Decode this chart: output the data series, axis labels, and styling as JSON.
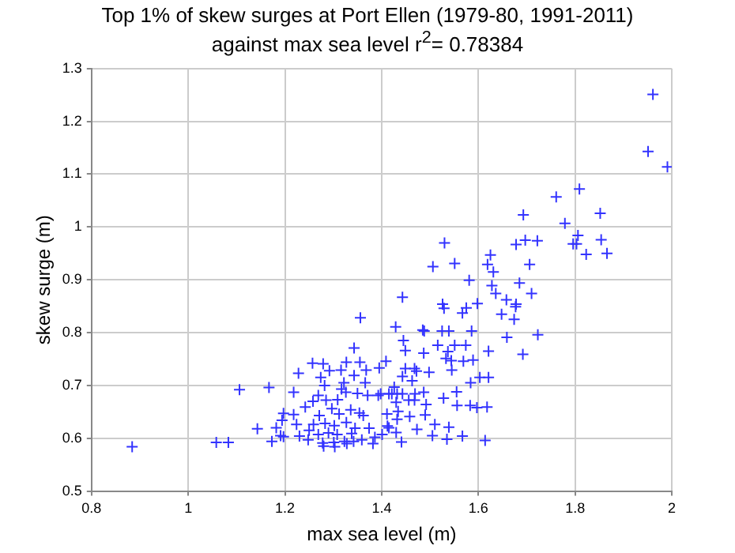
{
  "chart_data": {
    "type": "scatter",
    "title": "Top 1% of skew surges at Port Ellen (1979-80, 1991-2011)",
    "subtitle": "against max sea level r$^{2}$= 0.78384",
    "xlabel": "max sea level (m)",
    "ylabel": "skew surge (m)",
    "x": [
      1.961,
      1.951,
      1.991,
      1.809,
      1.761,
      1.693,
      1.852,
      1.779,
      1.806,
      1.53,
      1.697,
      1.722,
      1.678,
      1.796,
      1.803,
      1.854,
      1.823,
      1.866,
      1.625,
      1.506,
      1.551,
      1.619,
      1.706,
      1.631,
      1.581,
      1.628,
      1.685,
      1.71,
      1.636,
      1.658,
      1.678,
      1.677,
      1.443,
      1.526,
      1.529,
      1.575,
      1.567,
      1.598,
      1.648,
      1.674,
      1.429,
      1.485,
      1.488,
      1.525,
      1.539,
      1.586,
      1.659,
      1.723,
      1.445,
      1.449,
      1.516,
      1.551,
      1.574,
      1.537,
      1.487,
      1.621,
      1.692,
      1.409,
      1.533,
      1.544,
      1.569,
      1.589,
      1.449,
      1.468,
      1.472,
      1.498,
      1.545,
      1.443,
      1.463,
      1.603,
      1.621,
      1.584,
      1.426,
      1.398,
      1.415,
      1.421,
      1.432,
      1.443,
      1.469,
      1.487,
      1.528,
      1.555,
      1.43,
      1.492,
      1.468,
      1.556,
      1.583,
      1.597,
      1.618,
      1.411,
      1.434,
      1.456,
      1.49,
      1.432,
      1.458,
      1.412,
      1.415,
      1.51,
      1.539,
      1.43,
      1.473,
      1.505,
      1.535,
      1.567,
      1.441,
      1.614,
      1.401,
      1.356,
      1.343,
      1.257,
      1.279,
      1.327,
      1.355,
      1.395,
      1.228,
      1.274,
      1.292,
      1.316,
      1.343,
      1.368,
      1.282,
      1.322,
      1.366,
      1.106,
      1.167,
      1.218,
      1.269,
      1.317,
      1.326,
      1.35,
      1.371,
      1.393,
      1.258,
      1.285,
      1.309,
      1.242,
      1.297,
      1.336,
      1.354,
      1.197,
      1.218,
      1.271,
      1.312,
      1.362,
      1.194,
      1.224,
      1.259,
      1.283,
      1.302,
      1.327,
      1.345,
      1.374,
      1.143,
      1.182,
      1.191,
      1.197,
      1.23,
      1.25,
      1.269,
      1.29,
      1.308,
      1.338,
      1.386,
      1.173,
      1.248,
      1.278,
      1.301,
      1.323,
      1.328,
      1.342,
      1.359,
      1.382,
      1.28,
      1.303,
      1.058,
      1.083,
      0.884
    ],
    "values": [
      1.251,
      1.143,
      1.114,
      1.072,
      1.057,
      1.023,
      1.026,
      1.007,
      0.984,
      0.97,
      0.975,
      0.974,
      0.967,
      0.968,
      0.968,
      0.976,
      0.948,
      0.95,
      0.947,
      0.925,
      0.931,
      0.929,
      0.929,
      0.915,
      0.899,
      0.889,
      0.894,
      0.874,
      0.874,
      0.862,
      0.854,
      0.849,
      0.867,
      0.854,
      0.846,
      0.847,
      0.837,
      0.855,
      0.835,
      0.825,
      0.811,
      0.805,
      0.803,
      0.803,
      0.803,
      0.803,
      0.791,
      0.796,
      0.785,
      0.766,
      0.776,
      0.776,
      0.776,
      0.764,
      0.761,
      0.765,
      0.759,
      0.746,
      0.751,
      0.747,
      0.746,
      0.748,
      0.732,
      0.732,
      0.727,
      0.725,
      0.729,
      0.717,
      0.709,
      0.715,
      0.715,
      0.705,
      0.697,
      0.684,
      0.684,
      0.684,
      0.684,
      0.684,
      0.684,
      0.687,
      0.676,
      0.688,
      0.668,
      0.664,
      0.672,
      0.662,
      0.662,
      0.658,
      0.659,
      0.646,
      0.651,
      0.672,
      0.644,
      0.636,
      0.641,
      0.623,
      0.62,
      0.626,
      0.621,
      0.611,
      0.617,
      0.605,
      0.598,
      0.604,
      0.593,
      0.596,
      0.607,
      0.828,
      0.771,
      0.742,
      0.741,
      0.744,
      0.744,
      0.733,
      0.723,
      0.715,
      0.728,
      0.729,
      0.719,
      0.729,
      0.7,
      0.705,
      0.705,
      0.692,
      0.696,
      0.687,
      0.681,
      0.693,
      0.687,
      0.685,
      0.681,
      0.681,
      0.67,
      0.672,
      0.673,
      0.659,
      0.656,
      0.654,
      0.648,
      0.647,
      0.645,
      0.643,
      0.646,
      0.643,
      0.634,
      0.626,
      0.626,
      0.628,
      0.624,
      0.63,
      0.619,
      0.619,
      0.618,
      0.62,
      0.605,
      0.603,
      0.604,
      0.615,
      0.607,
      0.61,
      0.607,
      0.609,
      0.602,
      0.594,
      0.597,
      0.591,
      0.592,
      0.594,
      0.59,
      0.594,
      0.597,
      0.59,
      0.585,
      0.584,
      0.592,
      0.592,
      0.584
    ],
    "color": "#3333ff",
    "marker": "cross",
    "xlim": [
      0.8,
      2
    ],
    "ylim": [
      0.5,
      1.3
    ],
    "xticks": [
      0.8,
      1,
      1.2,
      1.4,
      1.6,
      1.8,
      2
    ],
    "yticks": [
      0.5,
      0.6,
      0.7,
      0.8,
      0.9,
      1,
      1.1,
      1.2,
      1.3
    ],
    "grid": true
  }
}
